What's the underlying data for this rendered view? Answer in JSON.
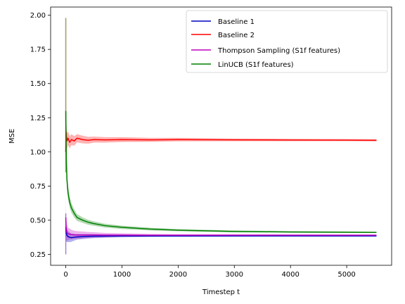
{
  "chart_data": {
    "type": "line",
    "title": "",
    "xlabel": "Timestep t",
    "ylabel": "MSE",
    "xlim": [
      -270,
      5800
    ],
    "ylim": [
      0.17,
      2.06
    ],
    "xticks": [
      0,
      1000,
      2000,
      3000,
      4000,
      5000
    ],
    "xtick_labels": [
      "0",
      "1000",
      "2000",
      "3000",
      "4000",
      "5000"
    ],
    "yticks": [
      0.25,
      0.5,
      0.75,
      1.0,
      1.25,
      1.5,
      1.75,
      2.0
    ],
    "ytick_labels": [
      "0.25",
      "0.50",
      "0.75",
      "1.00",
      "1.25",
      "1.50",
      "1.75",
      "2.00"
    ],
    "legend_position": "top-right",
    "series": [
      {
        "name": "Baseline 1",
        "color": "#0000bf",
        "x": [
          0,
          5,
          10,
          20,
          40,
          70,
          100,
          150,
          200,
          300,
          400,
          500,
          700,
          1000,
          1500,
          2000,
          3000,
          4000,
          5000,
          5530
        ],
        "values": [
          0.45,
          0.42,
          0.4,
          0.39,
          0.38,
          0.375,
          0.372,
          0.375,
          0.378,
          0.38,
          0.382,
          0.383,
          0.384,
          0.385,
          0.385,
          0.385,
          0.385,
          0.385,
          0.385,
          0.385
        ],
        "band": [
          0.08,
          0.07,
          0.06,
          0.05,
          0.04,
          0.035,
          0.03,
          0.025,
          0.02,
          0.018,
          0.016,
          0.014,
          0.012,
          0.01,
          0.008,
          0.007,
          0.006,
          0.005,
          0.005,
          0.005
        ]
      },
      {
        "name": "Baseline 2",
        "color": "#ff0000",
        "x": [
          0,
          5,
          10,
          20,
          40,
          70,
          100,
          150,
          200,
          300,
          400,
          500,
          700,
          1000,
          1500,
          2000,
          3000,
          4000,
          5000,
          5530
        ],
        "values": [
          1.0,
          1.15,
          1.12,
          1.08,
          1.1,
          1.07,
          1.09,
          1.08,
          1.1,
          1.09,
          1.085,
          1.09,
          1.088,
          1.09,
          1.088,
          1.09,
          1.088,
          1.087,
          1.086,
          1.085
        ],
        "band": [
          0.3,
          0.15,
          0.1,
          0.06,
          0.05,
          0.045,
          0.04,
          0.035,
          0.03,
          0.028,
          0.025,
          0.022,
          0.02,
          0.018,
          0.015,
          0.013,
          0.01,
          0.009,
          0.008,
          0.008
        ]
      },
      {
        "name": "Thompson Sampling (S1f features)",
        "color": "#bf00bf",
        "x": [
          0,
          5,
          10,
          20,
          40,
          70,
          100,
          150,
          200,
          300,
          400,
          500,
          700,
          1000,
          1500,
          2000,
          3000,
          4000,
          5000,
          5530
        ],
        "values": [
          0.52,
          0.45,
          0.43,
          0.41,
          0.4,
          0.398,
          0.395,
          0.393,
          0.392,
          0.392,
          0.392,
          0.392,
          0.391,
          0.391,
          0.39,
          0.39,
          0.39,
          0.39,
          0.39,
          0.39
        ],
        "band": [
          0.15,
          0.1,
          0.08,
          0.06,
          0.045,
          0.04,
          0.035,
          0.03,
          0.028,
          0.025,
          0.022,
          0.02,
          0.016,
          0.013,
          0.01,
          0.008,
          0.007,
          0.006,
          0.005,
          0.005
        ]
      },
      {
        "name": "LinUCB (S1f features)",
        "color": "#008000",
        "x": [
          0,
          5,
          10,
          20,
          40,
          70,
          100,
          150,
          200,
          300,
          400,
          500,
          700,
          1000,
          1500,
          2000,
          3000,
          4000,
          5000,
          5530
        ],
        "values": [
          1.3,
          1.1,
          0.95,
          0.8,
          0.7,
          0.63,
          0.59,
          0.55,
          0.52,
          0.5,
          0.485,
          0.475,
          0.46,
          0.448,
          0.435,
          0.427,
          0.418,
          0.414,
          0.412,
          0.411
        ],
        "band": [
          0.25,
          0.15,
          0.1,
          0.07,
          0.05,
          0.04,
          0.035,
          0.03,
          0.025,
          0.02,
          0.018,
          0.016,
          0.014,
          0.012,
          0.01,
          0.008,
          0.007,
          0.006,
          0.005,
          0.005
        ]
      }
    ]
  }
}
